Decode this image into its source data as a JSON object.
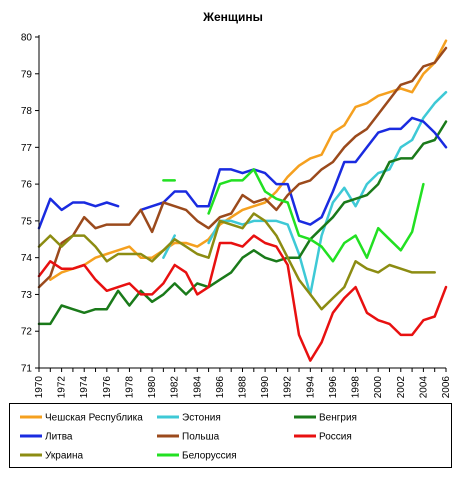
{
  "chart_data": {
    "type": "line",
    "title": "Женщины",
    "xlabel": "",
    "ylabel": "",
    "ylim": [
      71,
      80
    ],
    "yticks": [
      71,
      72,
      73,
      74,
      75,
      76,
      77,
      78,
      79,
      80
    ],
    "xlim": [
      1970,
      2006
    ],
    "xticks": [
      1970,
      1972,
      1974,
      1976,
      1978,
      1980,
      1982,
      1984,
      1986,
      1988,
      1990,
      1992,
      1994,
      1996,
      1998,
      2000,
      2002,
      2004,
      2006
    ],
    "grid": false,
    "legend_position": "bottom",
    "series": [
      {
        "name": "Чешская Республика",
        "color": "#f5a01f",
        "points": [
          [
            1971,
            73.4
          ],
          [
            1972,
            73.6
          ],
          [
            1973,
            73.7
          ],
          [
            1974,
            73.8
          ],
          [
            1975,
            74.0
          ],
          [
            1976,
            74.1
          ],
          [
            1977,
            74.2
          ],
          [
            1978,
            74.3
          ],
          [
            1979,
            74.0
          ],
          [
            1980,
            74.0
          ],
          [
            1981,
            74.2
          ],
          [
            1982,
            74.4
          ],
          [
            1983,
            74.4
          ],
          [
            1984,
            74.3
          ],
          [
            1985,
            74.5
          ],
          [
            1986,
            74.9
          ],
          [
            1987,
            75.1
          ],
          [
            1988,
            75.3
          ],
          [
            1989,
            75.4
          ],
          [
            1990,
            75.5
          ],
          [
            1991,
            75.8
          ],
          [
            1992,
            76.2
          ],
          [
            1993,
            76.5
          ],
          [
            1994,
            76.7
          ],
          [
            1995,
            76.8
          ],
          [
            1996,
            77.4
          ],
          [
            1997,
            77.6
          ],
          [
            1998,
            78.1
          ],
          [
            1999,
            78.2
          ],
          [
            2000,
            78.4
          ],
          [
            2001,
            78.5
          ],
          [
            2002,
            78.6
          ],
          [
            2003,
            78.5
          ],
          [
            2004,
            79.0
          ],
          [
            2005,
            79.3
          ],
          [
            2006,
            79.9
          ]
        ]
      },
      {
        "name": "Эстония",
        "color": "#3ec9d6",
        "segments": [
          [
            [
              1981,
              74.0
            ],
            [
              1982,
              74.6
            ]
          ],
          [
            [
              1985,
              74.4
            ],
            [
              1986,
              75.0
            ],
            [
              1987,
              75.0
            ],
            [
              1988,
              74.9
            ],
            [
              1989,
              75.0
            ],
            [
              1990,
              75.0
            ],
            [
              1991,
              75.0
            ],
            [
              1992,
              74.9
            ],
            [
              1993,
              74.1
            ],
            [
              1994,
              73.0
            ],
            [
              1995,
              74.6
            ],
            [
              1996,
              75.5
            ],
            [
              1997,
              75.9
            ],
            [
              1998,
              75.4
            ],
            [
              1999,
              76.0
            ],
            [
              2000,
              76.3
            ],
            [
              2001,
              76.4
            ],
            [
              2002,
              77.0
            ],
            [
              2003,
              77.2
            ],
            [
              2004,
              77.8
            ],
            [
              2005,
              78.2
            ],
            [
              2006,
              78.5
            ]
          ]
        ]
      },
      {
        "name": "Венгрия",
        "color": "#1a7a1a",
        "points": [
          [
            1970,
            72.2
          ],
          [
            1971,
            72.2
          ],
          [
            1972,
            72.7
          ],
          [
            1973,
            72.6
          ],
          [
            1974,
            72.5
          ],
          [
            1975,
            72.6
          ],
          [
            1976,
            72.6
          ],
          [
            1977,
            73.1
          ],
          [
            1978,
            72.7
          ],
          [
            1979,
            73.1
          ],
          [
            1980,
            72.8
          ],
          [
            1981,
            73.0
          ],
          [
            1982,
            73.3
          ],
          [
            1983,
            73.0
          ],
          [
            1984,
            73.3
          ],
          [
            1985,
            73.2
          ],
          [
            1986,
            73.4
          ],
          [
            1987,
            73.6
          ],
          [
            1988,
            74.0
          ],
          [
            1989,
            74.2
          ],
          [
            1990,
            74.0
          ],
          [
            1991,
            73.9
          ],
          [
            1992,
            74.0
          ],
          [
            1993,
            74.0
          ],
          [
            1994,
            74.5
          ],
          [
            1995,
            74.8
          ],
          [
            1996,
            75.1
          ],
          [
            1997,
            75.5
          ],
          [
            1998,
            75.6
          ],
          [
            1999,
            75.7
          ],
          [
            2000,
            76.0
          ],
          [
            2001,
            76.6
          ],
          [
            2002,
            76.7
          ],
          [
            2003,
            76.7
          ],
          [
            2004,
            77.1
          ],
          [
            2005,
            77.2
          ],
          [
            2006,
            77.7
          ]
        ]
      },
      {
        "name": "Литва",
        "color": "#1a2be0",
        "segments": [
          [
            [
              1970,
              74.8
            ],
            [
              1971,
              75.6
            ],
            [
              1972,
              75.3
            ],
            [
              1973,
              75.5
            ],
            [
              1974,
              75.5
            ],
            [
              1975,
              75.4
            ],
            [
              1976,
              75.5
            ],
            [
              1977,
              75.4
            ]
          ],
          [
            [
              1979,
              75.3
            ],
            [
              1980,
              75.4
            ],
            [
              1981,
              75.5
            ],
            [
              1982,
              75.8
            ],
            [
              1983,
              75.8
            ],
            [
              1984,
              75.4
            ],
            [
              1985,
              75.4
            ],
            [
              1986,
              76.4
            ],
            [
              1987,
              76.4
            ],
            [
              1988,
              76.3
            ],
            [
              1989,
              76.4
            ],
            [
              1990,
              76.3
            ],
            [
              1991,
              76.0
            ],
            [
              1992,
              76.0
            ],
            [
              1993,
              75.0
            ],
            [
              1994,
              74.9
            ],
            [
              1995,
              75.1
            ],
            [
              1996,
              75.8
            ],
            [
              1997,
              76.6
            ],
            [
              1998,
              76.6
            ],
            [
              1999,
              77.0
            ],
            [
              2000,
              77.4
            ],
            [
              2001,
              77.5
            ],
            [
              2002,
              77.5
            ],
            [
              2003,
              77.8
            ],
            [
              2004,
              77.7
            ],
            [
              2005,
              77.4
            ],
            [
              2006,
              77.0
            ]
          ]
        ]
      },
      {
        "name": "Польша",
        "color": "#9b4a1c",
        "points": [
          [
            1970,
            73.2
          ],
          [
            1971,
            73.5
          ],
          [
            1972,
            74.4
          ],
          [
            1973,
            74.6
          ],
          [
            1974,
            75.1
          ],
          [
            1975,
            74.8
          ],
          [
            1976,
            74.9
          ],
          [
            1977,
            74.9
          ],
          [
            1978,
            74.9
          ],
          [
            1979,
            75.3
          ],
          [
            1980,
            74.7
          ],
          [
            1981,
            75.5
          ],
          [
            1982,
            75.4
          ],
          [
            1983,
            75.3
          ],
          [
            1984,
            75.0
          ],
          [
            1985,
            74.8
          ],
          [
            1986,
            75.1
          ],
          [
            1987,
            75.2
          ],
          [
            1988,
            75.7
          ],
          [
            1989,
            75.5
          ],
          [
            1990,
            75.6
          ],
          [
            1991,
            75.3
          ],
          [
            1992,
            75.7
          ],
          [
            1993,
            76.0
          ],
          [
            1994,
            76.1
          ],
          [
            1995,
            76.4
          ],
          [
            1996,
            76.6
          ],
          [
            1997,
            77.0
          ],
          [
            1998,
            77.3
          ],
          [
            1999,
            77.5
          ],
          [
            2000,
            77.9
          ],
          [
            2001,
            78.3
          ],
          [
            2002,
            78.7
          ],
          [
            2003,
            78.8
          ],
          [
            2004,
            79.2
          ],
          [
            2005,
            79.3
          ],
          [
            2006,
            79.7
          ]
        ]
      },
      {
        "name": "Россия",
        "color": "#e81010",
        "points": [
          [
            1970,
            73.5
          ],
          [
            1971,
            73.9
          ],
          [
            1972,
            73.7
          ],
          [
            1973,
            73.7
          ],
          [
            1974,
            73.8
          ],
          [
            1975,
            73.4
          ],
          [
            1976,
            73.1
          ],
          [
            1977,
            73.2
          ],
          [
            1978,
            73.3
          ],
          [
            1979,
            73.0
          ],
          [
            1980,
            73.0
          ],
          [
            1981,
            73.3
          ],
          [
            1982,
            73.8
          ],
          [
            1983,
            73.6
          ],
          [
            1984,
            73.0
          ],
          [
            1985,
            73.2
          ],
          [
            1986,
            74.4
          ],
          [
            1987,
            74.4
          ],
          [
            1988,
            74.3
          ],
          [
            1989,
            74.6
          ],
          [
            1990,
            74.4
          ],
          [
            1991,
            74.3
          ],
          [
            1992,
            73.8
          ],
          [
            1993,
            71.9
          ],
          [
            1994,
            71.2
          ],
          [
            1995,
            71.7
          ],
          [
            1996,
            72.5
          ],
          [
            1997,
            72.9
          ],
          [
            1998,
            73.2
          ],
          [
            1999,
            72.5
          ],
          [
            2000,
            72.3
          ],
          [
            2001,
            72.2
          ],
          [
            2002,
            71.9
          ],
          [
            2003,
            71.9
          ],
          [
            2004,
            72.3
          ],
          [
            2005,
            72.4
          ],
          [
            2006,
            73.2
          ]
        ]
      },
      {
        "name": "Украина",
        "color": "#8c8c12",
        "points": [
          [
            1970,
            74.3
          ],
          [
            1971,
            74.6
          ],
          [
            1972,
            74.3
          ],
          [
            1973,
            74.6
          ],
          [
            1974,
            74.6
          ],
          [
            1975,
            74.3
          ],
          [
            1976,
            73.9
          ],
          [
            1977,
            74.1
          ],
          [
            1978,
            74.1
          ],
          [
            1979,
            74.1
          ],
          [
            1980,
            73.9
          ],
          [
            1981,
            74.2
          ],
          [
            1982,
            74.5
          ],
          [
            1983,
            74.3
          ],
          [
            1984,
            74.1
          ],
          [
            1985,
            74.0
          ],
          [
            1986,
            75.0
          ],
          [
            1987,
            74.9
          ],
          [
            1988,
            74.8
          ],
          [
            1989,
            75.2
          ],
          [
            1990,
            75.0
          ],
          [
            1991,
            74.6
          ],
          [
            1992,
            74.0
          ],
          [
            1993,
            73.4
          ],
          [
            1994,
            73.0
          ],
          [
            1995,
            72.6
          ],
          [
            1996,
            72.9
          ],
          [
            1997,
            73.2
          ],
          [
            1998,
            73.9
          ],
          [
            1999,
            73.7
          ],
          [
            2000,
            73.6
          ],
          [
            2001,
            73.8
          ],
          [
            2002,
            73.7
          ],
          [
            2003,
            73.6
          ],
          [
            2004,
            73.6
          ],
          [
            2005,
            73.6
          ]
        ]
      },
      {
        "name": "Белоруссия",
        "color": "#22e022",
        "segments": [
          [
            [
              1981,
              76.1
            ],
            [
              1982,
              76.1
            ]
          ],
          [
            [
              1985,
              75.2
            ],
            [
              1986,
              76.0
            ],
            [
              1987,
              76.1
            ],
            [
              1988,
              76.1
            ],
            [
              1989,
              76.4
            ],
            [
              1990,
              75.8
            ],
            [
              1991,
              75.6
            ],
            [
              1992,
              75.5
            ],
            [
              1993,
              74.6
            ],
            [
              1994,
              74.5
            ],
            [
              1995,
              74.3
            ],
            [
              1996,
              73.9
            ],
            [
              1997,
              74.4
            ],
            [
              1998,
              74.6
            ],
            [
              1999,
              74.0
            ],
            [
              2000,
              74.8
            ],
            [
              2001,
              74.5
            ],
            [
              2002,
              74.2
            ],
            [
              2003,
              74.7
            ],
            [
              2004,
              76.0
            ]
          ]
        ]
      }
    ]
  }
}
